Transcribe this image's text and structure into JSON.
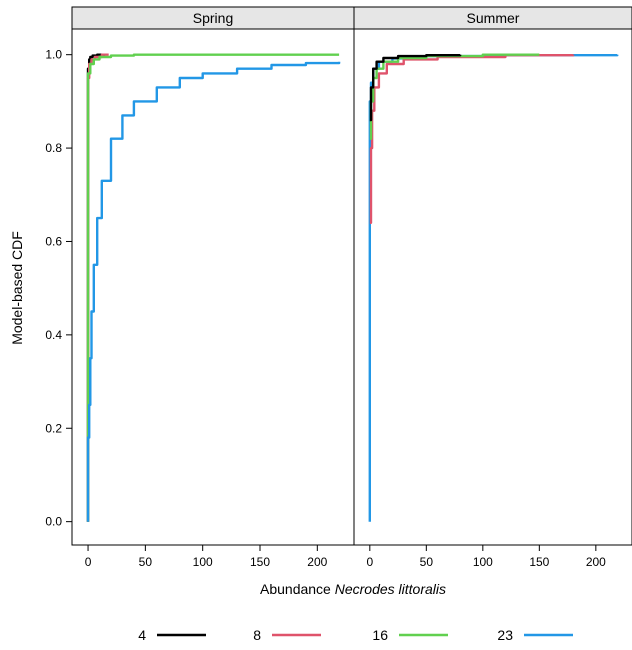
{
  "chart_data": {
    "type": "line",
    "ylabel": "Model-based CDF",
    "xlabel_prefix": "Abundance ",
    "xlabel_italic": "Necrodes littoralis",
    "xlim": [
      -14,
      232
    ],
    "ylim": [
      -0.05,
      1.055
    ],
    "x_ticks": [
      0,
      50,
      100,
      150,
      200
    ],
    "y_ticks": [
      0.0,
      0.2,
      0.4,
      0.6,
      0.8,
      1.0
    ],
    "y_tick_labels": [
      "0.0",
      "0.2",
      "0.4",
      "0.6",
      "0.8",
      "1.0"
    ],
    "legend_position": "bottom",
    "panels": [
      {
        "title": "Spring",
        "series": [
          {
            "name": "4",
            "color": "#000000",
            "points": [
              [
                0,
                0
              ],
              [
                0,
                0.97
              ],
              [
                1,
                0.99
              ],
              [
                2,
                0.995
              ],
              [
                4,
                0.998
              ],
              [
                8,
                1.0
              ],
              [
                15,
                1.0
              ]
            ]
          },
          {
            "name": "8",
            "color": "#df536b",
            "points": [
              [
                0,
                0
              ],
              [
                0,
                0.95
              ],
              [
                1,
                0.98
              ],
              [
                3,
                0.99
              ],
              [
                6,
                0.995
              ],
              [
                12,
                1.0
              ],
              [
                18,
                1.0
              ]
            ]
          },
          {
            "name": "16",
            "color": "#61d04f",
            "points": [
              [
                0,
                0
              ],
              [
                0,
                0.96
              ],
              [
                2,
                0.98
              ],
              [
                5,
                0.99
              ],
              [
                10,
                0.995
              ],
              [
                20,
                0.998
              ],
              [
                40,
                1.0
              ],
              [
                219,
                1.0
              ]
            ]
          },
          {
            "name": "23",
            "color": "#2297e6",
            "points": [
              [
                0,
                0
              ],
              [
                0,
                0.18
              ],
              [
                1,
                0.25
              ],
              [
                2,
                0.35
              ],
              [
                3,
                0.45
              ],
              [
                5,
                0.55
              ],
              [
                8,
                0.65
              ],
              [
                12,
                0.73
              ],
              [
                20,
                0.82
              ],
              [
                30,
                0.87
              ],
              [
                40,
                0.9
              ],
              [
                60,
                0.93
              ],
              [
                80,
                0.95
              ],
              [
                100,
                0.96
              ],
              [
                130,
                0.97
              ],
              [
                160,
                0.978
              ],
              [
                190,
                0.982
              ],
              [
                219,
                0.985
              ]
            ]
          }
        ]
      },
      {
        "title": "Summer",
        "series": [
          {
            "name": "23",
            "color": "#2297e6",
            "points": [
              [
                0,
                0
              ],
              [
                0,
                0.9
              ],
              [
                1,
                0.94
              ],
              [
                3,
                0.97
              ],
              [
                8,
                0.985
              ],
              [
                20,
                0.992
              ],
              [
                50,
                0.997
              ],
              [
                100,
                0.999
              ],
              [
                219,
                1.0
              ]
            ]
          },
          {
            "name": "8",
            "color": "#df536b",
            "points": [
              [
                0,
                0.64
              ],
              [
                1,
                0.8
              ],
              [
                2,
                0.88
              ],
              [
                4,
                0.93
              ],
              [
                8,
                0.96
              ],
              [
                15,
                0.98
              ],
              [
                30,
                0.99
              ],
              [
                60,
                0.995
              ],
              [
                120,
                0.999
              ],
              [
                180,
                1.0
              ]
            ]
          },
          {
            "name": "16",
            "color": "#61d04f",
            "points": [
              [
                0,
                0.82
              ],
              [
                1,
                0.9
              ],
              [
                3,
                0.95
              ],
              [
                6,
                0.97
              ],
              [
                12,
                0.985
              ],
              [
                25,
                0.993
              ],
              [
                50,
                0.997
              ],
              [
                100,
                1.0
              ],
              [
                150,
                1.0
              ]
            ]
          },
          {
            "name": "4",
            "color": "#000000",
            "points": [
              [
                0,
                0.86
              ],
              [
                1,
                0.93
              ],
              [
                3,
                0.97
              ],
              [
                6,
                0.985
              ],
              [
                12,
                0.993
              ],
              [
                25,
                0.997
              ],
              [
                50,
                0.999
              ],
              [
                80,
                1.0
              ]
            ]
          }
        ]
      }
    ],
    "legend": [
      {
        "label": "4",
        "color": "#000000"
      },
      {
        "label": "8",
        "color": "#df536b"
      },
      {
        "label": "16",
        "color": "#61d04f"
      },
      {
        "label": "23",
        "color": "#2297e6"
      }
    ]
  }
}
